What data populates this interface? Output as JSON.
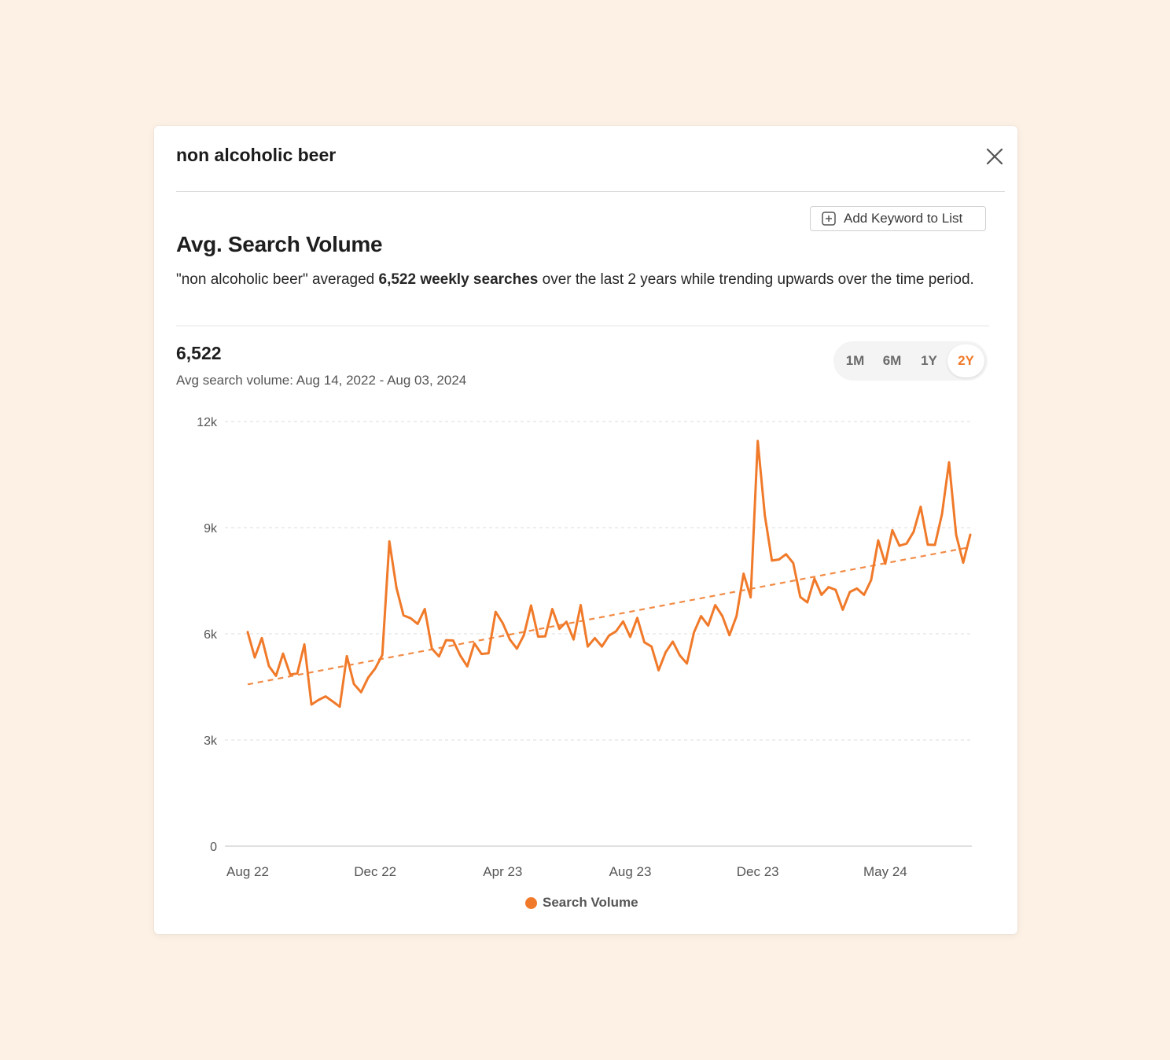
{
  "modal": {
    "title": "non alcoholic beer",
    "add_button_label": "Add Keyword to List"
  },
  "section": {
    "title": "Avg. Search Volume",
    "summary_prefix": "\"non alcoholic beer\" averaged ",
    "summary_bold": "6,522 weekly searches",
    "summary_suffix": " over the last 2 years while trending upwards over the time period."
  },
  "stats": {
    "value": "6,522",
    "caption": "Avg search volume: Aug 14, 2022 - Aug 03, 2024"
  },
  "range_tabs": [
    {
      "label": "1M",
      "active": false
    },
    {
      "label": "6M",
      "active": false
    },
    {
      "label": "1Y",
      "active": false
    },
    {
      "label": "2Y",
      "active": true
    }
  ],
  "legend": {
    "label": "Search Volume"
  },
  "colors": {
    "accent": "#f07a2a",
    "background": "#fdf1e5",
    "grid": "#dedede"
  },
  "icons": {
    "close": "close-icon",
    "add": "plus-square-icon"
  },
  "chart_data": {
    "type": "line",
    "title": "",
    "xlabel": "",
    "ylabel": "",
    "ylim": [
      0,
      12000
    ],
    "y_ticks": [
      {
        "value": 0,
        "label": "0"
      },
      {
        "value": 3000,
        "label": "3k"
      },
      {
        "value": 6000,
        "label": "6k"
      },
      {
        "value": 9000,
        "label": "9k"
      },
      {
        "value": 12000,
        "label": "12k"
      }
    ],
    "x_range": [
      0,
      102
    ],
    "x_ticks": [
      {
        "week": 0,
        "label": "Aug 22"
      },
      {
        "week": 18,
        "label": "Dec 22"
      },
      {
        "week": 36,
        "label": "Apr 23"
      },
      {
        "week": 54,
        "label": "Aug 23"
      },
      {
        "week": 72,
        "label": "Dec 23"
      },
      {
        "week": 90,
        "label": "May 24"
      }
    ],
    "grid": true,
    "legend_position": "bottom-center",
    "series": [
      {
        "name": "Search Volume",
        "color": "#f07a2a",
        "values": [
          6050,
          5330,
          5880,
          5090,
          4810,
          5440,
          4850,
          4880,
          5700,
          4000,
          4130,
          4230,
          4090,
          3940,
          5370,
          4580,
          4350,
          4760,
          5020,
          5400,
          8610,
          7300,
          6520,
          6440,
          6280,
          6700,
          5580,
          5360,
          5820,
          5810,
          5390,
          5080,
          5730,
          5430,
          5450,
          6620,
          6300,
          5840,
          5580,
          5970,
          6800,
          5920,
          5930,
          6700,
          6140,
          6340,
          5840,
          6810,
          5640,
          5880,
          5640,
          5950,
          6070,
          6350,
          5910,
          6450,
          5760,
          5640,
          4970,
          5480,
          5780,
          5390,
          5160,
          6040,
          6500,
          6230,
          6810,
          6500,
          5960,
          6500,
          7700,
          7030,
          11450,
          9350,
          8070,
          8100,
          8250,
          8000,
          7040,
          6890,
          7560,
          7100,
          7320,
          7240,
          6680,
          7180,
          7280,
          7100,
          7520,
          8640,
          7980,
          8930,
          8490,
          8550,
          8880,
          9590,
          8520,
          8510,
          9380,
          10850,
          8800,
          8010,
          8800
        ]
      }
    ],
    "trend_line": {
      "start": 4570,
      "end": 8450,
      "style": "dashed"
    }
  }
}
